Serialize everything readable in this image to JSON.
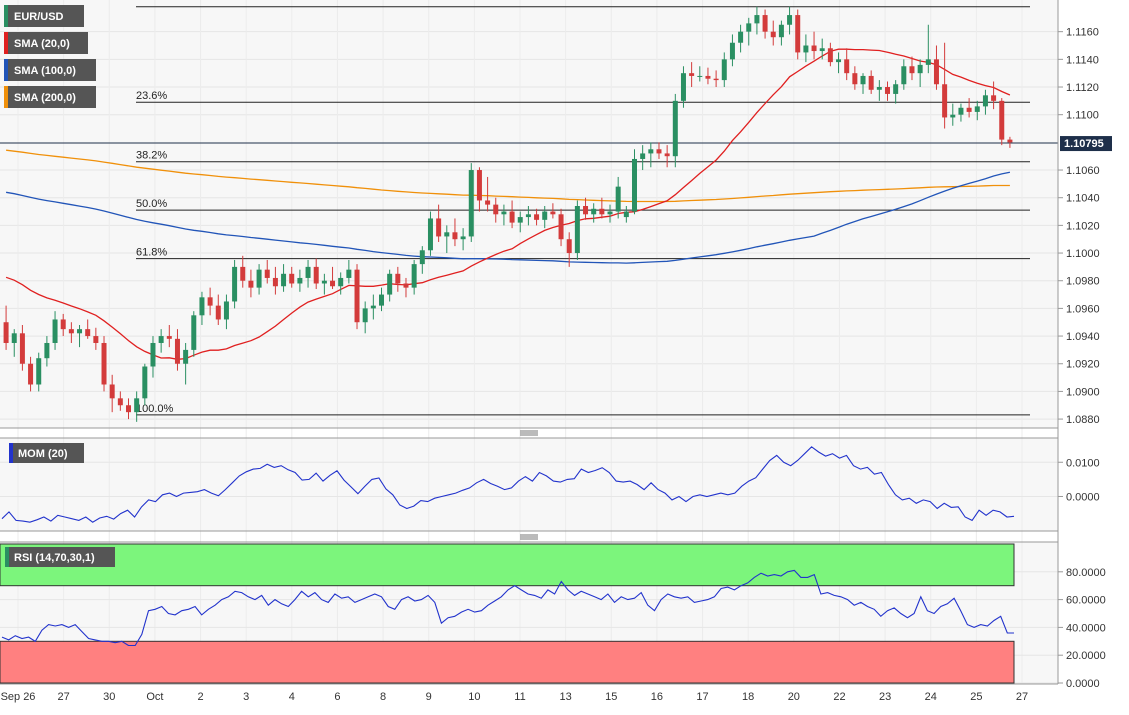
{
  "chart_data": [
    {
      "type": "candlestick",
      "symbol": "EUR/USD",
      "indicators": [
        {
          "name": "SMA (20,0)",
          "color": "#e02020"
        },
        {
          "name": "SMA (100,0)",
          "color": "#2255b8"
        },
        {
          "name": "SMA (200,0)",
          "color": "#f0900a"
        }
      ],
      "current_price": "1.10795",
      "ylim": [
        1.0875,
        1.118
      ],
      "yticks": [
        "1.1160",
        "1.1140",
        "1.1120",
        "1.1100",
        "1.1060",
        "1.1040",
        "1.1020",
        "1.1000",
        "1.0980",
        "1.0960",
        "1.0940",
        "1.0920",
        "1.0900",
        "1.0880"
      ],
      "ytick_values": [
        1.116,
        1.114,
        1.112,
        1.11,
        1.106,
        1.104,
        1.102,
        1.1,
        1.098,
        1.096,
        1.094,
        1.092,
        1.09,
        1.088
      ],
      "fibonacci": [
        {
          "label": "23.6%",
          "value": 1.1109
        },
        {
          "label": "38.2%",
          "value": 1.1066
        },
        {
          "label": "50.0%",
          "value": 1.1031
        },
        {
          "label": "61.8%",
          "value": 1.0996
        },
        {
          "label": "100.0%",
          "value": 1.0883
        }
      ],
      "top_line_value": 1.1178,
      "candles": [
        [
          1.095,
          1.0962,
          1.093,
          1.0935
        ],
        [
          1.0935,
          1.0945,
          1.0925,
          1.0942
        ],
        [
          1.0942,
          1.0948,
          1.0915,
          1.092
        ],
        [
          1.092,
          1.0925,
          1.09,
          1.0905
        ],
        [
          1.0905,
          1.0928,
          1.09,
          1.0924
        ],
        [
          1.0924,
          1.094,
          1.0918,
          1.0935
        ],
        [
          1.0935,
          1.0958,
          1.093,
          1.0952
        ],
        [
          1.0952,
          1.0956,
          1.094,
          1.0945
        ],
        [
          1.0945,
          1.095,
          1.0935,
          1.0942
        ],
        [
          1.0942,
          1.0948,
          1.0932,
          1.0945
        ],
        [
          1.0945,
          1.0952,
          1.0938,
          1.094
        ],
        [
          1.094,
          1.0946,
          1.093,
          1.0935
        ],
        [
          1.0935,
          1.094,
          1.09,
          1.0905
        ],
        [
          1.0905,
          1.0912,
          1.0885,
          1.0895
        ],
        [
          1.0895,
          1.09,
          1.0886,
          1.089
        ],
        [
          1.089,
          1.0895,
          1.088,
          1.0885
        ],
        [
          1.0885,
          1.09,
          1.0878,
          1.0895
        ],
        [
          1.0895,
          1.092,
          1.089,
          1.0918
        ],
        [
          1.0918,
          1.094,
          1.091,
          1.0935
        ],
        [
          1.0935,
          1.0945,
          1.0928,
          1.094
        ],
        [
          1.094,
          1.0948,
          1.0932,
          1.0938
        ],
        [
          1.0938,
          1.0945,
          1.0915,
          1.092
        ],
        [
          1.092,
          1.0935,
          1.0905,
          1.093
        ],
        [
          1.093,
          1.0958,
          1.0925,
          1.0955
        ],
        [
          1.0955,
          1.0972,
          1.0948,
          1.0968
        ],
        [
          1.0968,
          1.0975,
          1.0955,
          1.0962
        ],
        [
          1.0962,
          1.097,
          1.0948,
          1.0952
        ],
        [
          1.0952,
          1.097,
          1.0945,
          1.0965
        ],
        [
          1.0965,
          1.0995,
          1.096,
          1.099
        ],
        [
          1.099,
          1.0998,
          1.0975,
          1.098
        ],
        [
          1.098,
          1.0988,
          1.0968,
          1.0975
        ],
        [
          1.0975,
          1.0992,
          1.097,
          1.0988
        ],
        [
          1.0988,
          1.0995,
          1.0978,
          1.0982
        ],
        [
          1.0982,
          1.099,
          1.097,
          1.0976
        ],
        [
          1.0976,
          1.0992,
          1.0972,
          1.0985
        ],
        [
          1.0985,
          1.099,
          1.0975,
          1.0978
        ],
        [
          1.0978,
          1.0988,
          1.0972,
          1.0982
        ],
        [
          1.0982,
          1.0995,
          1.0975,
          1.099
        ],
        [
          1.099,
          1.0996,
          1.0974,
          1.0978
        ],
        [
          1.0978,
          1.0985,
          1.097,
          1.098
        ],
        [
          1.098,
          1.099,
          1.0974,
          1.0976
        ],
        [
          1.0976,
          1.0986,
          1.097,
          1.0982
        ],
        [
          1.0982,
          1.0995,
          1.0978,
          1.0988
        ],
        [
          1.0988,
          1.0992,
          1.0945,
          1.095
        ],
        [
          1.095,
          1.0965,
          1.0942,
          1.096
        ],
        [
          1.096,
          1.097,
          1.0952,
          1.0962
        ],
        [
          1.0962,
          1.0975,
          1.0958,
          1.097
        ],
        [
          1.097,
          1.0988,
          1.0965,
          1.0985
        ],
        [
          1.0985,
          1.099,
          1.0972,
          1.0978
        ],
        [
          1.0978,
          1.0982,
          1.0968,
          1.0975
        ],
        [
          1.0975,
          1.0995,
          1.097,
          1.0992
        ],
        [
          1.0992,
          1.1005,
          1.0985,
          1.1002
        ],
        [
          1.1002,
          1.103,
          1.0998,
          1.1025
        ],
        [
          1.1025,
          1.1035,
          1.1008,
          1.1012
        ],
        [
          1.1012,
          1.102,
          1.1,
          1.1015
        ],
        [
          1.1015,
          1.1025,
          1.1005,
          1.101
        ],
        [
          1.101,
          1.1018,
          1.1002,
          1.1012
        ],
        [
          1.1012,
          1.1065,
          1.1008,
          1.106
        ],
        [
          1.106,
          1.1062,
          1.103,
          1.1038
        ],
        [
          1.1038,
          1.1055,
          1.103,
          1.1035
        ],
        [
          1.1035,
          1.104,
          1.1022,
          1.1028
        ],
        [
          1.1028,
          1.1035,
          1.102,
          1.103
        ],
        [
          1.103,
          1.1038,
          1.1018,
          1.1022
        ],
        [
          1.1022,
          1.103,
          1.1015,
          1.1026
        ],
        [
          1.1026,
          1.1034,
          1.102,
          1.1028
        ],
        [
          1.1028,
          1.1032,
          1.102,
          1.1024
        ],
        [
          1.1024,
          1.1034,
          1.1018,
          1.103
        ],
        [
          1.103,
          1.1036,
          1.1025,
          1.1028
        ],
        [
          1.1028,
          1.1032,
          1.1005,
          1.101
        ],
        [
          1.101,
          1.1015,
          1.099,
          1.1
        ],
        [
          1.1,
          1.1038,
          1.0995,
          1.1034
        ],
        [
          1.1034,
          1.104,
          1.1024,
          1.1028
        ],
        [
          1.1028,
          1.1036,
          1.1022,
          1.1032
        ],
        [
          1.1032,
          1.104,
          1.1025,
          1.1028
        ],
        [
          1.1028,
          1.1035,
          1.1022,
          1.103
        ],
        [
          1.103,
          1.1055,
          1.1025,
          1.1048
        ],
        [
          1.1026,
          1.1034,
          1.1022,
          1.103
        ],
        [
          1.103,
          1.1075,
          1.1028,
          1.1068
        ],
        [
          1.1068,
          1.1078,
          1.106,
          1.1072
        ],
        [
          1.1072,
          1.108,
          1.1062,
          1.1075
        ],
        [
          1.1075,
          1.108,
          1.1068,
          1.1072
        ],
        [
          1.1072,
          1.1078,
          1.1062,
          1.107
        ],
        [
          1.107,
          1.1115,
          1.1062,
          1.111
        ],
        [
          1.111,
          1.1135,
          1.1105,
          1.113
        ],
        [
          1.113,
          1.1138,
          1.112,
          1.1128
        ],
        [
          1.1128,
          1.1135,
          1.1124,
          1.1128
        ],
        [
          1.1128,
          1.1134,
          1.1122,
          1.1126
        ],
        [
          1.1126,
          1.1132,
          1.112,
          1.1125
        ],
        [
          1.1125,
          1.1145,
          1.112,
          1.114
        ],
        [
          1.114,
          1.1158,
          1.1135,
          1.1152
        ],
        [
          1.1152,
          1.1165,
          1.1145,
          1.116
        ],
        [
          1.116,
          1.117,
          1.115,
          1.1166
        ],
        [
          1.1166,
          1.1178,
          1.1158,
          1.1172
        ],
        [
          1.1172,
          1.1176,
          1.1155,
          1.116
        ],
        [
          1.116,
          1.1168,
          1.115,
          1.1156
        ],
        [
          1.1156,
          1.1168,
          1.115,
          1.1165
        ],
        [
          1.1165,
          1.1178,
          1.1158,
          1.1172
        ],
        [
          1.1172,
          1.1176,
          1.114,
          1.1145
        ],
        [
          1.1145,
          1.1158,
          1.1138,
          1.115
        ],
        [
          1.115,
          1.116,
          1.114,
          1.1146
        ],
        [
          1.1146,
          1.1155,
          1.114,
          1.1148
        ],
        [
          1.1148,
          1.1152,
          1.1135,
          1.1138
        ],
        [
          1.1138,
          1.1145,
          1.113,
          1.114
        ],
        [
          1.114,
          1.1148,
          1.1125,
          1.113
        ],
        [
          1.113,
          1.1135,
          1.1118,
          1.1122
        ],
        [
          1.1122,
          1.113,
          1.1115,
          1.1128
        ],
        [
          1.1128,
          1.1132,
          1.1115,
          1.1118
        ],
        [
          1.1118,
          1.1125,
          1.111,
          1.112
        ],
        [
          1.112,
          1.1124,
          1.111,
          1.1115
        ],
        [
          1.1115,
          1.1125,
          1.1108,
          1.1122
        ],
        [
          1.1122,
          1.114,
          1.1118,
          1.1135
        ],
        [
          1.1135,
          1.1142,
          1.1125,
          1.113
        ],
        [
          1.113,
          1.114,
          1.112,
          1.1136
        ],
        [
          1.1136,
          1.1165,
          1.113,
          1.114
        ],
        [
          1.114,
          1.115,
          1.1118,
          1.1122
        ],
        [
          1.1122,
          1.1152,
          1.109,
          1.1098
        ],
        [
          1.1098,
          1.1108,
          1.1092,
          1.11
        ],
        [
          1.11,
          1.1108,
          1.1095,
          1.1105
        ],
        [
          1.1105,
          1.1112,
          1.1098,
          1.1102
        ],
        [
          1.1102,
          1.111,
          1.1096,
          1.1106
        ],
        [
          1.1106,
          1.1118,
          1.11,
          1.1114
        ],
        [
          1.1114,
          1.1124,
          1.1104,
          1.111
        ],
        [
          1.111,
          1.1112,
          1.1078,
          1.1082
        ],
        [
          1.1082,
          1.1084,
          1.1076,
          1.108
        ]
      ],
      "x_labels": [
        "Sep 26",
        "27",
        "30",
        "Oct",
        "2",
        "3",
        "4",
        "6",
        "8",
        "9",
        "10",
        "11",
        "13",
        "15",
        "16",
        "17",
        "18",
        "20",
        "22",
        "23",
        "24",
        "25",
        "27"
      ]
    },
    {
      "type": "line",
      "label": "MOM (20)",
      "yticks": [
        "0.0100",
        "0.0000"
      ],
      "ytick_values": [
        0.01,
        0.0
      ],
      "ylim": [
        -0.0095,
        0.0165
      ],
      "values": [
        -0.0065,
        -0.0045,
        -0.007,
        -0.0072,
        -0.0075,
        -0.0068,
        -0.006,
        -0.0072,
        -0.0055,
        -0.006,
        -0.0065,
        -0.007,
        -0.006,
        -0.0075,
        -0.0063,
        -0.0058,
        -0.0066,
        -0.005,
        -0.004,
        -0.006,
        -0.003,
        -0.001,
        -0.0015,
        0.0005,
        0.001,
        0.0,
        0.001,
        0.0012,
        0.0014,
        0.002,
        0.001,
        0.0002,
        0.002,
        0.004,
        0.006,
        0.0072,
        0.008,
        0.0082,
        0.0094,
        0.0085,
        0.009,
        0.0078,
        0.007,
        0.0048,
        0.005,
        0.0068,
        0.0045,
        0.0062,
        0.0075,
        0.0048,
        0.0028,
        0.0008,
        0.003,
        0.005,
        0.0054,
        0.0022,
        0.0005,
        -0.0025,
        -0.0035,
        -0.0028,
        -0.0012,
        -0.0015,
        -0.0005,
        0.0,
        0.0005,
        0.001,
        0.0018,
        0.0025,
        0.004,
        0.005,
        0.0038,
        0.003,
        0.002,
        0.0025,
        0.0045,
        0.0058,
        0.0045,
        0.007,
        0.006,
        0.0045,
        0.0042,
        0.005,
        0.0052,
        0.008,
        0.007,
        0.0076,
        0.0084,
        0.007,
        0.0045,
        0.0042,
        0.0045,
        0.0035,
        0.002,
        0.004,
        0.002,
        0.001,
        -0.001,
        0.0,
        -0.0015,
        0.0,
        0.0005,
        0.0,
        0.0005,
        0.001,
        0.0005,
        0.001,
        0.003,
        0.0045,
        0.0055,
        0.008,
        0.0105,
        0.012,
        0.01,
        0.009,
        0.0105,
        0.0125,
        0.0145,
        0.013,
        0.0118,
        0.0125,
        0.0112,
        0.012,
        0.009,
        0.008,
        0.0085,
        0.0065,
        0.007,
        0.0035,
        0.0005,
        -0.001,
        -0.0005,
        -0.002,
        -0.001,
        -0.0015,
        -0.0035,
        -0.002,
        -0.0032,
        -0.003,
        -0.006,
        -0.007,
        -0.004,
        -0.0055,
        -0.004,
        -0.0045,
        -0.006,
        -0.0058
      ]
    },
    {
      "type": "line",
      "label": "RSI (14,70,30,1)",
      "yticks": [
        "80.0000",
        "60.0000",
        "40.0000",
        "20.0000",
        "0.0000"
      ],
      "ytick_values": [
        80,
        60,
        40,
        20,
        0
      ],
      "ylim": [
        0,
        100
      ],
      "overbought": 70,
      "oversold": 30,
      "values": [
        33,
        31,
        34,
        32,
        33,
        30,
        38,
        42,
        41,
        42,
        40,
        42,
        37,
        32,
        31,
        30,
        30,
        29,
        30,
        27,
        27,
        35,
        52,
        53,
        55,
        50,
        49,
        52,
        53,
        55,
        49,
        53,
        56,
        60,
        62,
        66,
        65,
        62,
        60,
        63,
        56,
        60,
        57,
        55,
        60,
        66,
        62,
        65,
        60,
        58,
        64,
        61,
        62,
        58,
        60,
        62,
        64,
        62,
        55,
        53,
        60,
        62,
        59,
        60,
        63,
        58,
        43,
        47,
        48,
        51,
        53,
        51,
        52,
        56,
        59,
        62,
        67,
        70,
        67,
        64,
        63,
        61,
        67,
        64,
        73,
        67,
        63,
        66,
        64,
        62,
        60,
        64,
        58,
        62,
        60,
        61,
        65,
        56,
        52,
        60,
        64,
        62,
        61,
        62,
        58,
        59,
        60,
        62,
        68,
        69,
        67,
        70,
        72,
        76,
        79,
        77,
        78,
        77,
        80,
        81,
        76,
        76,
        78,
        64,
        65,
        63,
        62,
        60,
        56,
        58,
        55,
        53,
        48,
        52,
        54,
        50,
        47,
        50,
        62,
        52,
        50,
        55,
        57,
        61,
        52,
        42,
        40,
        42,
        41,
        45,
        48,
        36,
        36
      ]
    }
  ]
}
